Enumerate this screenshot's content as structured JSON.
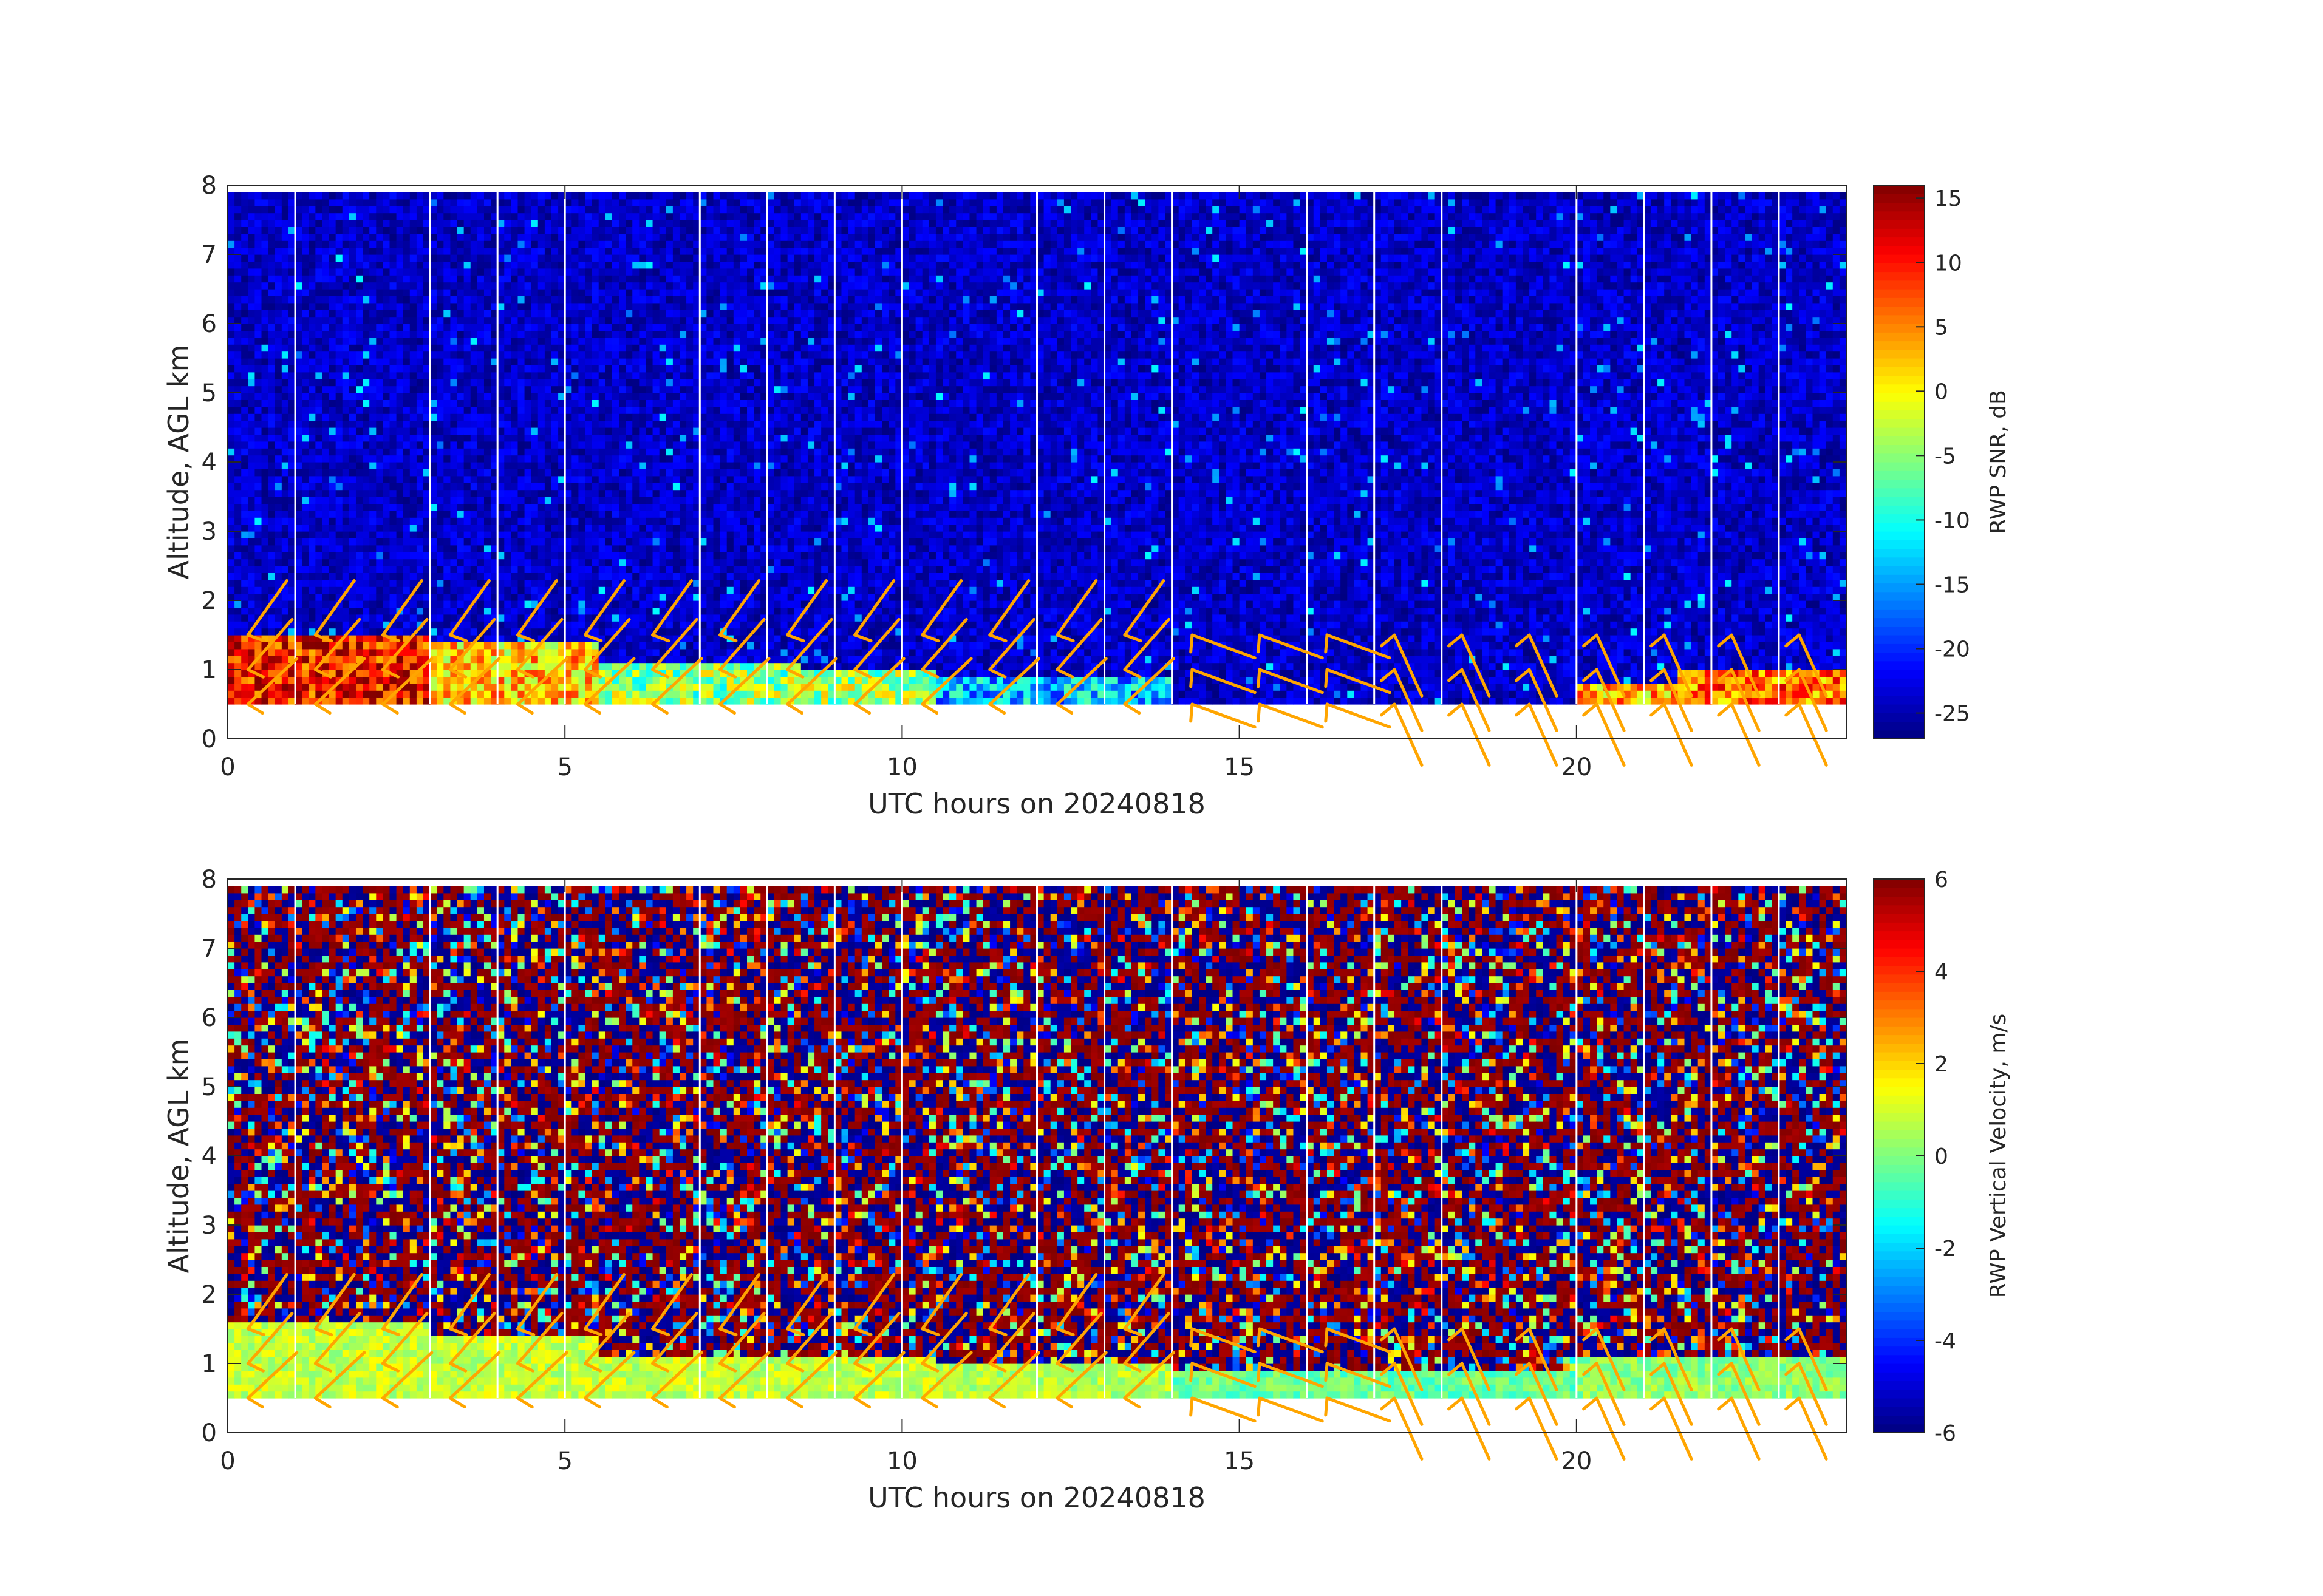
{
  "chart_data": [
    {
      "type": "heatmap",
      "title": "",
      "xlabel": "UTC hours on 20240818",
      "ylabel": "Altitude, AGL km",
      "xlim": [
        0,
        24
      ],
      "ylim": [
        0,
        8
      ],
      "xticks": [
        "0",
        "5",
        "10",
        "15",
        "20"
      ],
      "xtick_values": [
        0,
        5,
        10,
        15,
        20
      ],
      "yticks": [
        "0",
        "1",
        "2",
        "3",
        "4",
        "5",
        "6",
        "7",
        "8"
      ],
      "ytick_values": [
        0,
        1,
        2,
        3,
        4,
        5,
        6,
        7,
        8
      ],
      "colormap": "jet",
      "colorbar": {
        "label": "RWP SNR, dB",
        "range": [
          -27,
          16
        ],
        "ticks": [
          "15",
          "10",
          "5",
          "0",
          "-5",
          "-10",
          "-15",
          "-20",
          "-25"
        ],
        "tick_values": [
          15,
          10,
          5,
          0,
          -5,
          -10,
          -15,
          -20,
          -25
        ]
      },
      "valid_altitude_range_km": [
        0.5,
        7.9
      ],
      "data_gaps_hours": [
        1,
        3,
        4,
        5,
        7,
        8,
        9,
        10,
        12,
        13,
        14,
        16,
        17,
        18,
        20,
        21,
        22,
        23
      ],
      "background_snr_db": -24,
      "boundary_layer": [
        {
          "hours": [
            0,
            3
          ],
          "top_km": 1.5,
          "snr_db": 10
        },
        {
          "hours": [
            3,
            5.5
          ],
          "top_km": 1.35,
          "snr_db": 2
        },
        {
          "hours": [
            5.5,
            8.5
          ],
          "top_km": 1.05,
          "snr_db": -5
        },
        {
          "hours": [
            8.5,
            10.5
          ],
          "top_km": 1.0,
          "snr_db": -4
        },
        {
          "hours": [
            10.5,
            14
          ],
          "top_km": 0.9,
          "snr_db": -14
        },
        {
          "hours": [
            14,
            20
          ],
          "top_km": 0.5,
          "snr_db": -24
        },
        {
          "hours": [
            20,
            21.5
          ],
          "top_km": 0.8,
          "snr_db": 3
        },
        {
          "hours": [
            21.5,
            24
          ],
          "top_km": 1.0,
          "snr_db": 6
        }
      ]
    },
    {
      "type": "heatmap",
      "title": "",
      "xlabel": "UTC hours on 20240818",
      "ylabel": "Altitude, AGL km",
      "xlim": [
        0,
        24
      ],
      "ylim": [
        0,
        8
      ],
      "xticks": [
        "0",
        "5",
        "10",
        "15",
        "20"
      ],
      "xtick_values": [
        0,
        5,
        10,
        15,
        20
      ],
      "yticks": [
        "0",
        "1",
        "2",
        "3",
        "4",
        "5",
        "6",
        "7",
        "8"
      ],
      "ytick_values": [
        0,
        1,
        2,
        3,
        4,
        5,
        6,
        7,
        8
      ],
      "colormap": "jet",
      "colorbar": {
        "label": "RWP Vertical Velocity, m/s",
        "range": [
          -6,
          6
        ],
        "ticks": [
          "6",
          "4",
          "2",
          "0",
          "-2",
          "-4",
          "-6"
        ],
        "tick_values": [
          6,
          4,
          2,
          0,
          -2,
          -4,
          -6
        ]
      },
      "valid_altitude_range_km": [
        0.5,
        7.9
      ],
      "data_gaps_hours": [
        1,
        3,
        4,
        5,
        7,
        8,
        9,
        10,
        12,
        13,
        14,
        16,
        17,
        18,
        20,
        21,
        22,
        23
      ],
      "background_velocity_ms": "noise, -6 to 6",
      "boundary_layer": [
        {
          "hours": [
            0,
            3
          ],
          "top_km": 1.55,
          "velocity_ms": 0.8
        },
        {
          "hours": [
            3,
            5.5
          ],
          "top_km": 1.35,
          "velocity_ms": 0.8
        },
        {
          "hours": [
            5.5,
            10.5
          ],
          "top_km": 1.05,
          "velocity_ms": 0.8
        },
        {
          "hours": [
            10.5,
            14
          ],
          "top_km": 0.95,
          "velocity_ms": 0.6
        },
        {
          "hours": [
            14,
            20
          ],
          "top_km": 0.85,
          "velocity_ms": -0.3
        },
        {
          "hours": [
            20,
            24
          ],
          "top_km": 1.1,
          "velocity_ms": 0.2
        }
      ]
    }
  ],
  "wind_barbs": {
    "color": "#ffa500",
    "levels_km": [
      0.5,
      1.0,
      1.5
    ],
    "hours": [
      0,
      1,
      2,
      3,
      4,
      5,
      6,
      7,
      8,
      9,
      10,
      11,
      12,
      13,
      14,
      15,
      16,
      17,
      18,
      19,
      20,
      21,
      22,
      23
    ],
    "note_shown": "orange barbs overlaid on both panels"
  }
}
